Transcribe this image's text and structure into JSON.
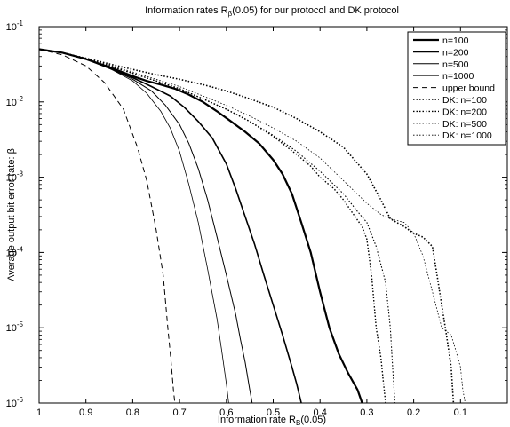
{
  "chart_data": {
    "type": "line",
    "title_main": "Information rates  R",
    "title_sub": "β",
    "title_rest": "(0.05) for our protocol and DK protocol",
    "xlabel_main": "Information rate R",
    "xlabel_sub": "B",
    "xlabel_rest": "(0.05)",
    "ylabel": "Average output bit error rate: β",
    "x_reversed": true,
    "xlim": [
      1,
      0
    ],
    "ylim": [
      1e-06,
      0.1
    ],
    "y_scale": "log",
    "x_ticks": [
      1,
      0.9,
      0.8,
      0.7,
      0.6,
      0.5,
      0.4,
      0.3,
      0.2,
      0.1
    ],
    "x_tick_labels": [
      "1",
      "0.9",
      "0.8",
      "0.7",
      "0.6",
      "0.5",
      "0.4",
      "0.3",
      "0.2",
      "0.1"
    ],
    "y_ticks": [
      {
        "value": 1e-06,
        "exp": "-6"
      },
      {
        "value": 1e-05,
        "exp": "-5"
      },
      {
        "value": 0.0001,
        "exp": "-4"
      },
      {
        "value": 0.001,
        "exp": "-3"
      },
      {
        "value": 0.01,
        "exp": "-2"
      },
      {
        "value": 0.1,
        "exp": "-1"
      }
    ],
    "y_tick_base": "10",
    "legend_position": "top-right",
    "series": [
      {
        "name": "n=100",
        "style": "solid",
        "width": 2.2,
        "x": [
          1.0,
          0.95,
          0.9,
          0.85,
          0.8,
          0.77,
          0.74,
          0.71,
          0.68,
          0.65,
          0.62,
          0.59,
          0.56,
          0.53,
          0.5,
          0.48,
          0.46,
          0.44,
          0.42,
          0.4,
          0.38,
          0.36,
          0.34,
          0.32,
          0.31
        ],
        "y": [
          0.05,
          0.045,
          0.037,
          0.029,
          0.022,
          0.019,
          0.017,
          0.015,
          0.0125,
          0.01,
          0.0075,
          0.0055,
          0.004,
          0.0028,
          0.0017,
          0.0011,
          0.0006,
          0.00025,
          0.0001,
          3e-05,
          1e-05,
          4.5e-06,
          2.5e-06,
          1.5e-06,
          1e-06
        ]
      },
      {
        "name": "n=200",
        "style": "solid",
        "width": 1.6,
        "x": [
          1.0,
          0.95,
          0.9,
          0.85,
          0.8,
          0.76,
          0.72,
          0.69,
          0.66,
          0.63,
          0.6,
          0.58,
          0.56,
          0.54,
          0.52,
          0.5,
          0.48,
          0.46,
          0.45,
          0.44
        ],
        "y": [
          0.05,
          0.045,
          0.037,
          0.028,
          0.021,
          0.016,
          0.012,
          0.0085,
          0.0055,
          0.0033,
          0.0015,
          0.0007,
          0.0003,
          0.00013,
          5e-05,
          2e-05,
          8e-06,
          3e-06,
          1.8e-06,
          1e-06
        ]
      },
      {
        "name": "n=500",
        "style": "solid",
        "width": 1.0,
        "x": [
          1.0,
          0.95,
          0.9,
          0.85,
          0.8,
          0.76,
          0.73,
          0.7,
          0.68,
          0.66,
          0.64,
          0.62,
          0.6,
          0.58,
          0.57,
          0.56,
          0.55,
          0.545
        ],
        "y": [
          0.05,
          0.045,
          0.037,
          0.028,
          0.02,
          0.014,
          0.009,
          0.005,
          0.0028,
          0.0013,
          0.0005,
          0.00016,
          5e-05,
          1.5e-05,
          7e-06,
          3.5e-06,
          1.5e-06,
          1e-06
        ]
      },
      {
        "name": "n=1000",
        "style": "solid",
        "width": 0.8,
        "x": [
          1.0,
          0.95,
          0.9,
          0.85,
          0.8,
          0.77,
          0.74,
          0.72,
          0.7,
          0.68,
          0.66,
          0.64,
          0.62,
          0.61,
          0.6,
          0.595
        ],
        "y": [
          0.05,
          0.045,
          0.037,
          0.028,
          0.019,
          0.013,
          0.0075,
          0.0045,
          0.0022,
          0.0008,
          0.00025,
          6e-05,
          1.3e-05,
          5e-06,
          1.8e-06,
          1e-06
        ]
      },
      {
        "name": "upper bound",
        "style": "dashed",
        "width": 1.0,
        "x": [
          1.0,
          0.95,
          0.9,
          0.86,
          0.82,
          0.79,
          0.77,
          0.75,
          0.735,
          0.725,
          0.718,
          0.713,
          0.71
        ],
        "y": [
          0.05,
          0.042,
          0.03,
          0.018,
          0.008,
          0.0025,
          0.0009,
          0.0002,
          5e-05,
          1e-05,
          3.5e-06,
          1.5e-06,
          1e-06
        ]
      },
      {
        "name": "DK: n=100",
        "style": "dotted",
        "width": 1.6,
        "x": [
          1.0,
          0.95,
          0.9,
          0.85,
          0.8,
          0.75,
          0.7,
          0.65,
          0.6,
          0.55,
          0.5,
          0.45,
          0.4,
          0.35,
          0.3,
          0.27,
          0.25,
          0.22,
          0.2,
          0.18,
          0.16,
          0.15,
          0.14,
          0.13,
          0.12,
          0.115
        ],
        "y": [
          0.05,
          0.045,
          0.038,
          0.032,
          0.027,
          0.023,
          0.02,
          0.017,
          0.014,
          0.011,
          0.0085,
          0.006,
          0.004,
          0.0025,
          0.0011,
          0.0005,
          0.00028,
          0.00022,
          0.00018,
          0.00016,
          0.00012,
          5e-05,
          2e-05,
          8e-06,
          3e-06,
          1e-06
        ]
      },
      {
        "name": "DK: n=200",
        "style": "dotted",
        "width": 1.4,
        "x": [
          1.0,
          0.95,
          0.9,
          0.85,
          0.8,
          0.75,
          0.7,
          0.65,
          0.6,
          0.55,
          0.5,
          0.45,
          0.42,
          0.4,
          0.37,
          0.35,
          0.33,
          0.31,
          0.3,
          0.29,
          0.28,
          0.27,
          0.265,
          0.26
        ],
        "y": [
          0.05,
          0.045,
          0.037,
          0.03,
          0.024,
          0.019,
          0.015,
          0.011,
          0.008,
          0.0055,
          0.0035,
          0.002,
          0.0014,
          0.001,
          0.0007,
          0.0005,
          0.00033,
          0.00022,
          0.00015,
          5e-05,
          1e-05,
          4e-06,
          2e-06,
          1e-06
        ]
      },
      {
        "name": "DK: n=500",
        "style": "dotted",
        "width": 1.1,
        "x": [
          1.0,
          0.95,
          0.9,
          0.85,
          0.8,
          0.75,
          0.7,
          0.65,
          0.6,
          0.55,
          0.5,
          0.45,
          0.4,
          0.35,
          0.32,
          0.3,
          0.28,
          0.26,
          0.25,
          0.245,
          0.24
        ],
        "y": [
          0.05,
          0.045,
          0.037,
          0.03,
          0.024,
          0.019,
          0.015,
          0.011,
          0.008,
          0.0055,
          0.0036,
          0.0022,
          0.0012,
          0.0006,
          0.00035,
          0.00025,
          0.00012,
          4e-05,
          1e-05,
          3e-06,
          1e-06
        ]
      },
      {
        "name": "DK: n=1000",
        "style": "dotted",
        "width": 0.8,
        "x": [
          1.0,
          0.95,
          0.9,
          0.85,
          0.8,
          0.75,
          0.7,
          0.65,
          0.6,
          0.55,
          0.5,
          0.45,
          0.4,
          0.35,
          0.3,
          0.27,
          0.25,
          0.22,
          0.2,
          0.18,
          0.16,
          0.14,
          0.12,
          0.11,
          0.1,
          0.095,
          0.09
        ],
        "y": [
          0.05,
          0.045,
          0.038,
          0.031,
          0.025,
          0.02,
          0.016,
          0.012,
          0.009,
          0.0065,
          0.0045,
          0.003,
          0.0018,
          0.0009,
          0.00045,
          0.00032,
          0.00028,
          0.00025,
          0.00018,
          9e-05,
          3e-05,
          1e-05,
          8e-06,
          5e-06,
          3e-06,
          1.5e-06,
          1e-06
        ]
      }
    ]
  }
}
